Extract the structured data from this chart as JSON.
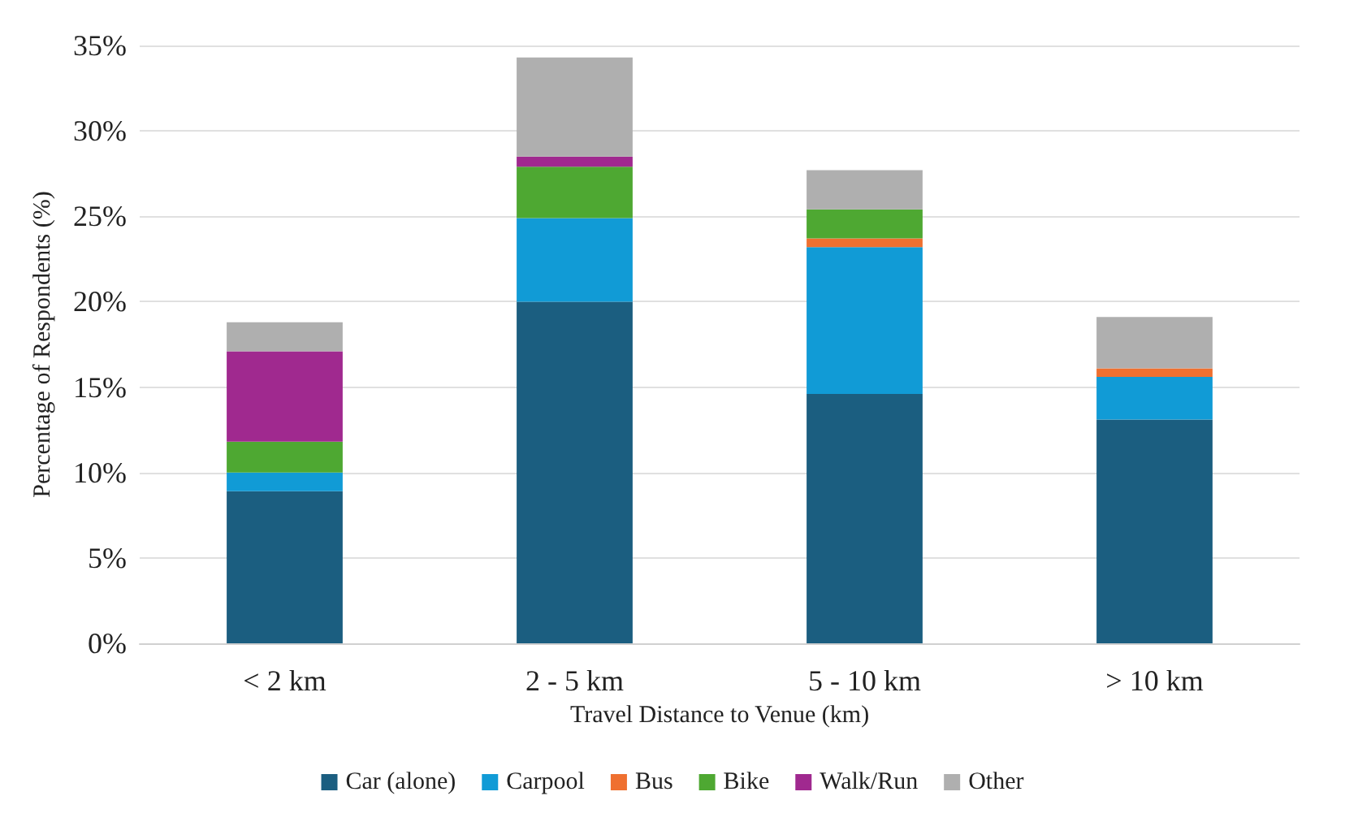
{
  "chart_data": {
    "type": "bar",
    "stacked": true,
    "xlabel": "Travel Distance to Venue (km)",
    "ylabel": "Percentage of Respondents (%)",
    "categories": [
      "< 2 km",
      "2 - 5 km",
      "5 - 10 km",
      "> 10 km"
    ],
    "series": [
      {
        "name": "Car (alone)",
        "color": "#1b5e80",
        "values": [
          8.9,
          20.0,
          14.6,
          13.1
        ]
      },
      {
        "name": "Carpool",
        "color": "#119bd6",
        "values": [
          1.1,
          4.9,
          8.6,
          2.5
        ]
      },
      {
        "name": "Bus",
        "color": "#ef7030",
        "values": [
          0,
          0,
          0.5,
          0.5
        ]
      },
      {
        "name": "Bike",
        "color": "#4ea832",
        "values": [
          1.8,
          3.0,
          1.7,
          0
        ]
      },
      {
        "name": "Walk/Run",
        "color": "#a0298f",
        "values": [
          5.3,
          0.6,
          0,
          0
        ]
      },
      {
        "name": "Other",
        "color": "#afafaf",
        "values": [
          1.7,
          5.8,
          2.3,
          3.0
        ]
      }
    ],
    "ylim": [
      0,
      35
    ],
    "yticks": [
      {
        "value": 0,
        "label": "0%"
      },
      {
        "value": 5,
        "label": "5%"
      },
      {
        "value": 10,
        "label": "10%"
      },
      {
        "value": 15,
        "label": "15%"
      },
      {
        "value": 20,
        "label": "20%"
      },
      {
        "value": 25,
        "label": "25%"
      },
      {
        "value": 30,
        "label": "30%"
      },
      {
        "value": 35,
        "label": "35%"
      }
    ],
    "grid": "y",
    "legend": "bottom"
  }
}
